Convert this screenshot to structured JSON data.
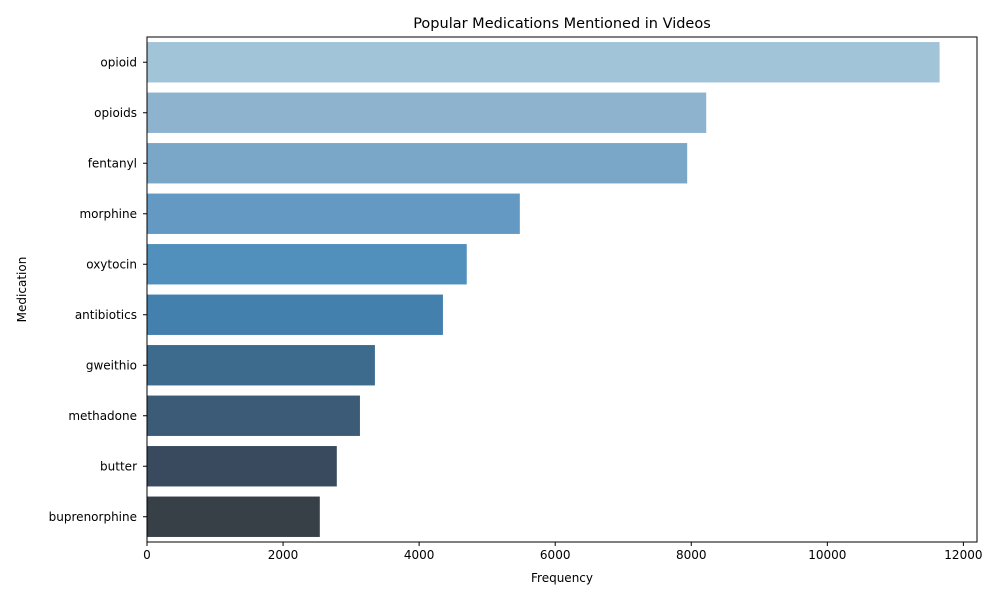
{
  "chart_data": {
    "type": "bar",
    "orientation": "horizontal",
    "title": "Popular Medications Mentioned in Videos",
    "xlabel": "Frequency",
    "ylabel": "Medication",
    "categories": [
      "opioid",
      "opioids",
      "fentanyl",
      "morphine",
      "oxytocin",
      "antibiotics",
      "gweithio",
      "methadone",
      "butter",
      "buprenorphine"
    ],
    "values": [
      11650,
      8220,
      7940,
      5480,
      4700,
      4350,
      3350,
      3130,
      2790,
      2540
    ],
    "colors": [
      "#a1c4d9",
      "#8db3cf",
      "#7aa7c8",
      "#6399c2",
      "#5190bd",
      "#4480ae",
      "#3d6b8d",
      "#3c5b76",
      "#394a5f",
      "#374047"
    ],
    "xlim": [
      0,
      12200
    ],
    "xticks": [
      0,
      2000,
      4000,
      6000,
      8000,
      10000,
      12000
    ],
    "xtick_labels": [
      "0",
      "2000",
      "4000",
      "6000",
      "8000",
      "10000",
      "12000"
    ],
    "grid": false,
    "legend": "none"
  }
}
